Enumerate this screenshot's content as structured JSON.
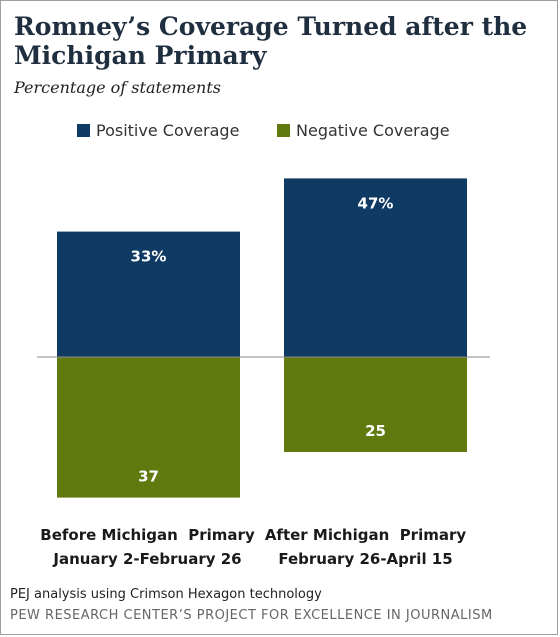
{
  "title": "Romney’s Coverage Turned after the Michigan Primary",
  "subtitle": "Percentage of statements",
  "colors": {
    "positive": "#0f3a63",
    "negative": "#607a0f",
    "baseline": "#8a8a8a"
  },
  "chart_data": {
    "type": "bar",
    "categories": [
      [
        "Before Michigan  Primary",
        "January 2-February 26"
      ],
      [
        "After Michigan  Primary",
        "February 26-April 15"
      ]
    ],
    "series": [
      {
        "name": "Positive Coverage",
        "values": [
          33,
          47
        ],
        "labels": [
          "33%",
          "47%"
        ],
        "direction": "up"
      },
      {
        "name": "Negative Coverage",
        "values": [
          37,
          25
        ],
        "labels": [
          "37",
          "25"
        ],
        "direction": "down"
      }
    ],
    "legend": "top",
    "grid": false
  },
  "footer": {
    "note": "PEJ analysis using Crimson Hexagon technology",
    "source": "PEW RESEARCH CENTER’S PROJECT FOR EXCELLENCE IN JOURNALISM"
  }
}
